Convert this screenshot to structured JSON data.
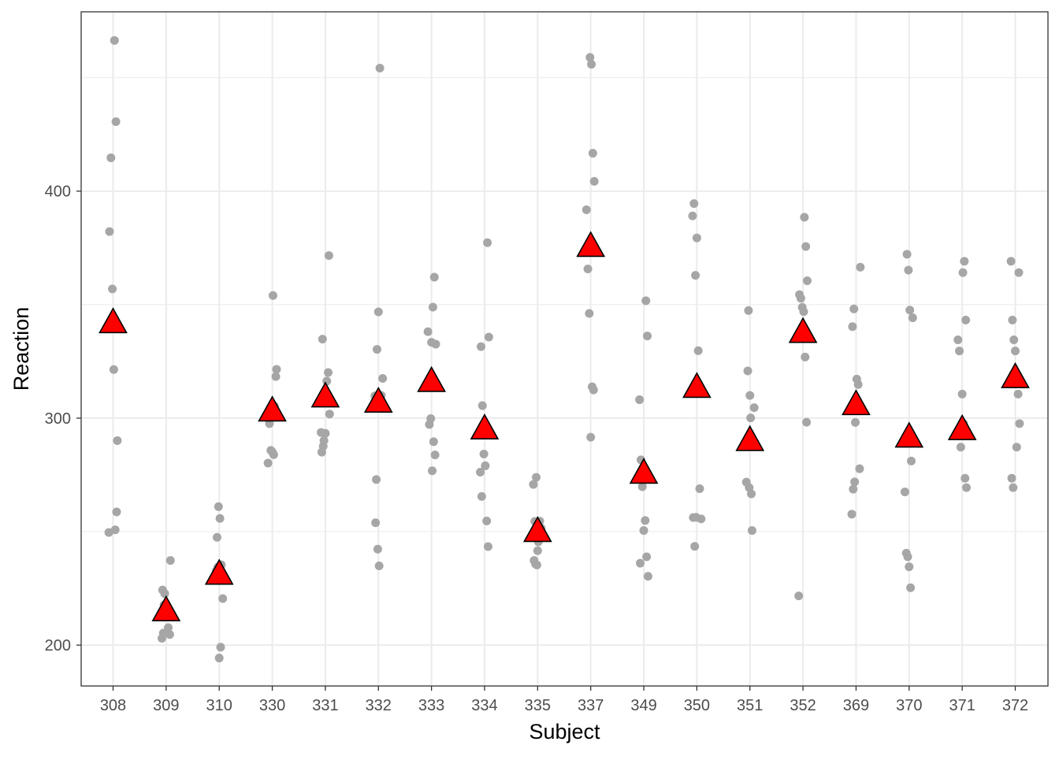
{
  "chart_data": {
    "type": "scatter",
    "title": "",
    "xlabel": "Subject",
    "ylabel": "Reaction",
    "categories": [
      "308",
      "309",
      "310",
      "330",
      "331",
      "332",
      "333",
      "334",
      "335",
      "337",
      "349",
      "350",
      "351",
      "352",
      "369",
      "370",
      "371",
      "372"
    ],
    "y_ticks": [
      200,
      300,
      400
    ],
    "ylim": [
      182,
      479
    ],
    "grid": true,
    "legend": "none",
    "series": [
      {
        "marker": "circle",
        "color": "#a6a6a6",
        "points": [
          {
            "subject": "308",
            "values": [
              249.6,
              258.7,
              250.8,
              321.4,
              356.9,
              414.7,
              382.2,
              290.1,
              430.6,
              466.4
            ]
          },
          {
            "subject": "309",
            "values": [
              222.7,
              205.3,
              202.98,
              204.7,
              207.7,
              215.96,
              213.6,
              217.7,
              224.3,
              237.3
            ]
          },
          {
            "subject": "310",
            "values": [
              199.1,
              194.3,
              234.3,
              232.8,
              229.3,
              220.5,
              235.4,
              255.8,
              261.0,
              247.5
            ]
          },
          {
            "subject": "330",
            "values": [
              321.5,
              300.4,
              283.9,
              285.1,
              285.8,
              297.6,
              280.2,
              318.3,
              305.3,
              354.0
            ]
          },
          {
            "subject": "331",
            "values": [
              287.6,
              285.0,
              301.8,
              320.1,
              316.3,
              293.3,
              290.1,
              334.8,
              293.7,
              371.6
            ]
          },
          {
            "subject": "332",
            "values": [
              234.9,
              242.3,
              272.96,
              309.8,
              317.5,
              309.99,
              454.2,
              346.8,
              330.3,
              253.9
            ]
          },
          {
            "subject": "333",
            "values": [
              283.8,
              289.6,
              276.8,
              299.8,
              297.2,
              338.1,
              332.6,
              362.1,
              348.9,
              333.4
            ]
          },
          {
            "subject": "334",
            "values": [
              265.5,
              276.2,
              243.4,
              254.7,
              279.0,
              284.2,
              305.5,
              331.5,
              335.7,
              377.3
            ]
          },
          {
            "subject": "335",
            "values": [
              241.6,
              273.9,
              254.5,
              270.8,
              251.5,
              254.6,
              245.5,
              235.3,
              235.8,
              237.3
            ]
          },
          {
            "subject": "337",
            "values": [
              312.4,
              313.8,
              291.6,
              346.1,
              365.7,
              391.8,
              404.3,
              416.7,
              455.9,
              458.9
            ]
          },
          {
            "subject": "349",
            "values": [
              236.1,
              230.3,
              238.9,
              254.9,
              250.5,
              269.8,
              281.6,
              308.1,
              336.2,
              351.7
            ]
          },
          {
            "subject": "350",
            "values": [
              256.3,
              243.5,
              256.2,
              255.6,
              268.9,
              329.7,
              379.4,
              362.9,
              394.5,
              389.1
            ]
          },
          {
            "subject": "351",
            "values": [
              250.5,
              300.1,
              269.4,
              320.8,
              271.8,
              304.6,
              287.7,
              266.6,
              310.0,
              347.4
            ]
          },
          {
            "subject": "352",
            "values": [
              221.7,
              298.2,
              326.9,
              346.9,
              348.8,
              352.8,
              354.4,
              360.5,
              375.6,
              388.5
            ]
          },
          {
            "subject": "369",
            "values": [
              271.9,
              268.7,
              257.7,
              277.7,
              314.8,
              317.2,
              298.1,
              348.1,
              340.3,
              366.5
            ]
          },
          {
            "subject": "370",
            "values": [
              225.3,
              234.5,
              238.9,
              240.5,
              267.5,
              344.2,
              281.1,
              347.6,
              365.2,
              372.2
            ]
          },
          {
            "subject": "371",
            "values": [
              269.4,
              273.5,
              297.6,
              310.6,
              287.2,
              329.6,
              334.5,
              343.2,
              369.1,
              364.1
            ]
          },
          {
            "subject": "372",
            "values": [
              269.4,
              273.5,
              297.6,
              310.6,
              287.2,
              329.6,
              334.5,
              343.2,
              369.1,
              364.1
            ]
          }
        ]
      },
      {
        "marker": "triangle",
        "color": "#ff0000",
        "stroke": "#000000",
        "values": [
          342.1,
          215.2,
          231.3,
          303.2,
          309.4,
          307.1,
          316.2,
          295.3,
          250.1,
          375.7,
          275.8,
          313.6,
          290.2,
          337.8,
          306.0,
          291.7,
          295.0,
          317.9
        ]
      }
    ]
  }
}
